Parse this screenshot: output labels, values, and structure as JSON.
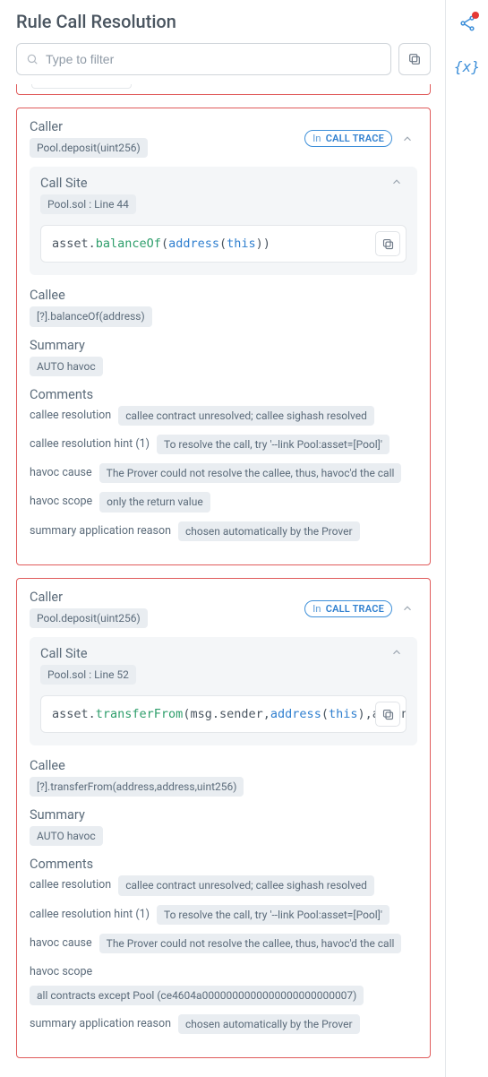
{
  "title": "Rule Call Resolution",
  "filter": {
    "placeholder": "Type to filter"
  },
  "badges": {
    "in": "In",
    "call_trace": "CALL TRACE"
  },
  "labels": {
    "caller": "Caller",
    "call_site": "Call Site",
    "callee": "Callee",
    "summary": "Summary",
    "comments": "Comments"
  },
  "comment_keys": {
    "callee_resolution": "callee resolution",
    "callee_resolution_hint": "callee resolution hint (1)",
    "havoc_cause": "havoc cause",
    "havoc_scope": "havoc scope",
    "summary_app_reason": "summary application reason"
  },
  "colors": {
    "border_alert": "#e05b5b",
    "accent": "#3d8fd9",
    "pill_bg": "#e9edf1",
    "text": "#5b6b7a",
    "code_fn": "#2e9e6b",
    "code_kw": "#2f7fcf"
  },
  "cards": [
    {
      "caller": "Pool.deposit(uint256)",
      "call_site_loc": "Pool.sol : Line 44",
      "code_tokens": [
        {
          "t": "asset",
          "c": "obj"
        },
        {
          "t": ".",
          "c": "punc"
        },
        {
          "t": "balanceOf",
          "c": "fn"
        },
        {
          "t": "(",
          "c": "punc"
        },
        {
          "t": "address",
          "c": "type"
        },
        {
          "t": "(",
          "c": "punc"
        },
        {
          "t": "this",
          "c": "kw"
        },
        {
          "t": ")",
          "c": "punc"
        },
        {
          "t": ")",
          "c": "punc"
        }
      ],
      "callee": "[?].balanceOf(address)",
      "summary": "AUTO havoc",
      "comments": {
        "callee_resolution": "callee contract unresolved; callee sighash resolved",
        "callee_resolution_hint": "To resolve the call, try '--link Pool:asset=[Pool]'",
        "havoc_cause": "The Prover could not resolve the callee, thus, havoc'd the call",
        "havoc_scope": "only the return value",
        "summary_app_reason": "chosen automatically by the Prover"
      }
    },
    {
      "caller": "Pool.deposit(uint256)",
      "call_site_loc": "Pool.sol : Line 52",
      "code_tokens": [
        {
          "t": "asset",
          "c": "obj"
        },
        {
          "t": ".",
          "c": "punc"
        },
        {
          "t": "transferFrom",
          "c": "fn"
        },
        {
          "t": "(",
          "c": "punc"
        },
        {
          "t": "msg",
          "c": "obj"
        },
        {
          "t": ".",
          "c": "punc"
        },
        {
          "t": "sender",
          "c": "obj"
        },
        {
          "t": ",",
          "c": "punc"
        },
        {
          "t": "address",
          "c": "type"
        },
        {
          "t": "(",
          "c": "punc"
        },
        {
          "t": "this",
          "c": "kw"
        },
        {
          "t": ")",
          "c": "punc"
        },
        {
          "t": ",",
          "c": "punc"
        },
        {
          "t": "amount",
          "c": "obj"
        }
      ],
      "callee": "[?].transferFrom(address,address,uint256)",
      "summary": "AUTO havoc",
      "comments": {
        "callee_resolution": "callee contract unresolved; callee sighash resolved",
        "callee_resolution_hint": "To resolve the call, try '--link Pool:asset=[Pool]'",
        "havoc_cause": "The Prover could not resolve the callee, thus, havoc'd the call",
        "havoc_scope": "all contracts except Pool (ce4604a0000000000000000000000007)",
        "summary_app_reason": "chosen automatically by the Prover"
      }
    }
  ]
}
